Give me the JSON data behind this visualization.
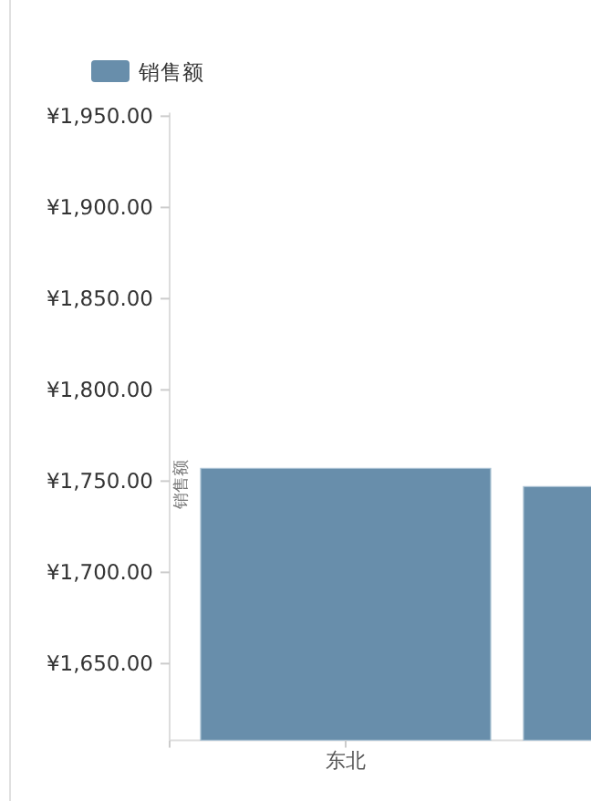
{
  "chart_data": {
    "type": "bar",
    "ylabel": "销售额",
    "legend": "top left",
    "categories": [
      "东北",
      null
    ],
    "series": [
      {
        "name": "销售额",
        "color": "#688eab",
        "values": [
          1757,
          1747
        ]
      }
    ],
    "ylim": [
      1608,
      1952
    ],
    "yticks": [
      {
        "value": 1650,
        "label": "¥1,650.00"
      },
      {
        "value": 1700,
        "label": "¥1,700.00"
      },
      {
        "value": 1750,
        "label": "¥1,750.00"
      },
      {
        "value": 1800,
        "label": "¥1,800.00"
      },
      {
        "value": 1850,
        "label": "¥1,850.00"
      },
      {
        "value": 1900,
        "label": "¥1,900.00"
      },
      {
        "value": 1950,
        "label": "¥1,950.00"
      }
    ]
  }
}
